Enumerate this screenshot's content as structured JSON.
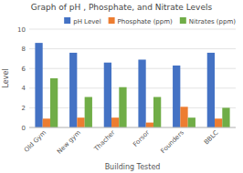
{
  "chart_data": {
    "type": "bar",
    "title": "Graph of pH , Phosphate, and Nitrate Levels",
    "xlabel": "Building Tested",
    "ylabel": "Level",
    "categories": [
      "Old Gym",
      "New gym",
      "Thacher",
      "Forsor",
      "Founders",
      "BBLC"
    ],
    "series": [
      {
        "name": "pH Level",
        "color": "#4472c4",
        "values": [
          8.6,
          7.6,
          6.6,
          6.9,
          6.3,
          7.6
        ]
      },
      {
        "name": "Phosphate (ppm)",
        "color": "#ed7d31",
        "values": [
          0.9,
          1.0,
          1.0,
          0.5,
          2.1,
          0.9
        ]
      },
      {
        "name": "Nitrates (ppm)",
        "color": "#70ad47",
        "values": [
          5.0,
          3.1,
          4.1,
          3.1,
          1.0,
          2.0
        ]
      }
    ],
    "ylim": [
      0,
      10
    ],
    "yticks": [
      0,
      2,
      4,
      6,
      8,
      10
    ],
    "grid": true,
    "legend": "upper right"
  }
}
